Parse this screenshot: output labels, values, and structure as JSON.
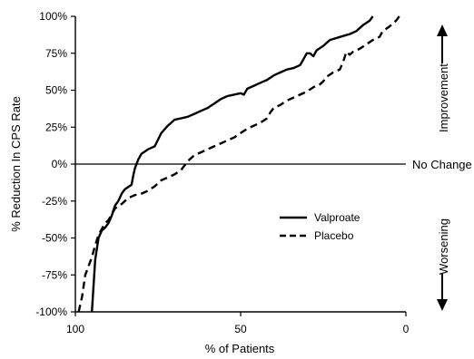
{
  "chart_data": {
    "type": "line",
    "xlabel": "% of Patients",
    "ylabel": "% Reduction In CPS Rate",
    "xlim": [
      100,
      0
    ],
    "ylim": [
      -100,
      100
    ],
    "x_reversed": true,
    "x_ticks": [
      100,
      50,
      0
    ],
    "x_tick_labels": [
      "100",
      "50",
      "0"
    ],
    "y_ticks": [
      100,
      75,
      50,
      25,
      0,
      -25,
      -50,
      -75,
      -100
    ],
    "y_tick_labels": [
      "100%",
      "75%",
      "50%",
      "25%",
      "0%",
      "-25%",
      "-50%",
      "-75%",
      "-100%"
    ],
    "reference_line": {
      "y": 0,
      "label": "No Change"
    },
    "annotations": {
      "up": "Improvement",
      "down": "Worsening"
    },
    "legend_position": "center-right",
    "series": [
      {
        "name": "Valproate",
        "style": "solid",
        "color": "#000000",
        "points": [
          [
            10,
            100
          ],
          [
            11,
            97
          ],
          [
            13,
            94
          ],
          [
            15,
            90
          ],
          [
            17,
            88
          ],
          [
            20,
            86
          ],
          [
            23,
            84
          ],
          [
            25,
            80
          ],
          [
            27,
            77
          ],
          [
            28,
            73
          ],
          [
            29,
            75
          ],
          [
            30,
            75
          ],
          [
            31,
            71
          ],
          [
            32,
            67
          ],
          [
            34,
            65
          ],
          [
            36,
            64
          ],
          [
            38,
            62
          ],
          [
            40,
            60
          ],
          [
            42,
            57
          ],
          [
            44,
            55
          ],
          [
            46,
            53
          ],
          [
            48,
            51
          ],
          [
            49,
            47
          ],
          [
            50,
            48
          ],
          [
            52,
            47
          ],
          [
            54,
            46
          ],
          [
            56,
            44
          ],
          [
            58,
            41
          ],
          [
            60,
            38
          ],
          [
            62,
            36
          ],
          [
            64,
            34
          ],
          [
            66,
            32
          ],
          [
            68,
            31
          ],
          [
            70,
            30
          ],
          [
            72,
            26
          ],
          [
            74,
            21
          ],
          [
            76,
            12
          ],
          [
            78,
            10
          ],
          [
            80,
            7
          ],
          [
            81,
            3
          ],
          [
            82,
            -3
          ],
          [
            82.5,
            -8
          ],
          [
            83,
            -14
          ],
          [
            85,
            -17
          ],
          [
            86,
            -20
          ],
          [
            87,
            -25
          ],
          [
            88,
            -28
          ],
          [
            89,
            -35
          ],
          [
            90,
            -40
          ],
          [
            91,
            -43
          ],
          [
            92,
            -45
          ],
          [
            93,
            -50
          ],
          [
            94,
            -65
          ],
          [
            95,
            -100
          ]
        ]
      },
      {
        "name": "Placebo",
        "style": "dashed",
        "color": "#000000",
        "points": [
          [
            2,
            100
          ],
          [
            3,
            97
          ],
          [
            5,
            93
          ],
          [
            7,
            90
          ],
          [
            8,
            86
          ],
          [
            10,
            84
          ],
          [
            12,
            81
          ],
          [
            14,
            78
          ],
          [
            16,
            76
          ],
          [
            17,
            74
          ],
          [
            18,
            76
          ],
          [
            19,
            69
          ],
          [
            20,
            64
          ],
          [
            22,
            62
          ],
          [
            24,
            59
          ],
          [
            25,
            56
          ],
          [
            26,
            54
          ],
          [
            28,
            52
          ],
          [
            30,
            49
          ],
          [
            32,
            47
          ],
          [
            34,
            45
          ],
          [
            36,
            43
          ],
          [
            38,
            40
          ],
          [
            40,
            38
          ],
          [
            41,
            35
          ],
          [
            42,
            31
          ],
          [
            44,
            28
          ],
          [
            46,
            26
          ],
          [
            48,
            24
          ],
          [
            50,
            21
          ],
          [
            52,
            18
          ],
          [
            54,
            16
          ],
          [
            56,
            14
          ],
          [
            58,
            12
          ],
          [
            60,
            10
          ],
          [
            62,
            8
          ],
          [
            64,
            6
          ],
          [
            66,
            2
          ],
          [
            68,
            -4
          ],
          [
            70,
            -7
          ],
          [
            72,
            -9
          ],
          [
            74,
            -11
          ],
          [
            76,
            -15
          ],
          [
            78,
            -18
          ],
          [
            80,
            -20
          ],
          [
            82,
            -21
          ],
          [
            84,
            -23
          ],
          [
            86,
            -27
          ],
          [
            88,
            -30
          ],
          [
            90,
            -38
          ],
          [
            91,
            -40
          ],
          [
            92,
            -44
          ],
          [
            93,
            -48
          ],
          [
            94,
            -55
          ],
          [
            95,
            -63
          ],
          [
            97,
            -75
          ],
          [
            98,
            -90
          ],
          [
            99,
            -100
          ]
        ]
      }
    ]
  }
}
